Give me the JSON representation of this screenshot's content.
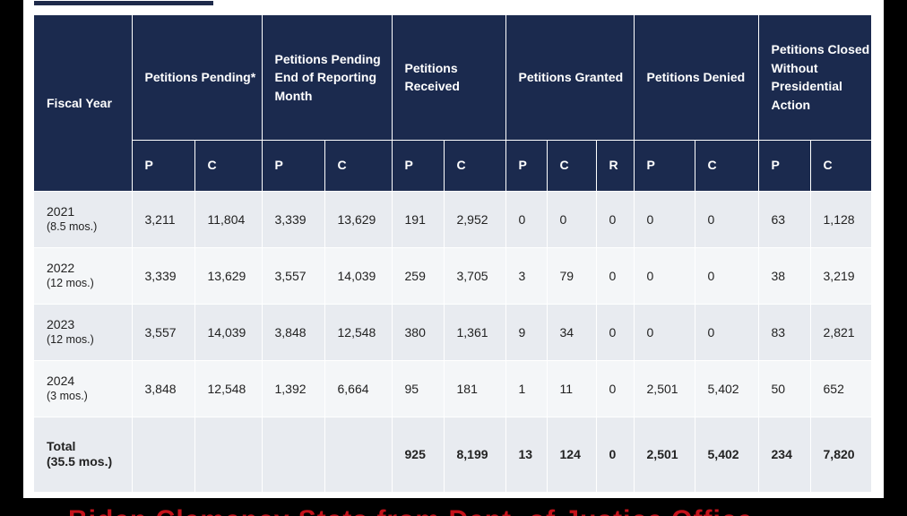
{
  "headers": {
    "fiscal_year": "Fiscal Year",
    "groups": [
      {
        "label": "Petitions Pending*",
        "subs": [
          "P",
          "C"
        ]
      },
      {
        "label": "Petitions Pending End of Reporting Month",
        "subs": [
          "P",
          "C"
        ]
      },
      {
        "label": "Petitions Received",
        "subs": [
          "P",
          "C"
        ]
      },
      {
        "label": "Petitions Granted",
        "subs": [
          "P",
          "C",
          "R"
        ]
      },
      {
        "label": "Petitions Denied",
        "subs": [
          "P",
          "C"
        ]
      },
      {
        "label": "Petitions Closed Without Presidential Action",
        "subs": [
          "P",
          "C"
        ]
      }
    ]
  },
  "rows": [
    {
      "year": "2021",
      "period": "(8.5 mos.)",
      "values": [
        "3,211",
        "11,804",
        "3,339",
        "13,629",
        "191",
        "2,952",
        "0",
        "0",
        "0",
        "0",
        "0",
        "63",
        "1,128"
      ]
    },
    {
      "year": "2022",
      "period": "(12 mos.)",
      "values": [
        "3,339",
        "13,629",
        "3,557",
        "14,039",
        "259",
        "3,705",
        "3",
        "79",
        "0",
        "0",
        "0",
        "38",
        "3,219"
      ]
    },
    {
      "year": "2023",
      "period": "(12 mos.)",
      "values": [
        "3,557",
        "14,039",
        "3,848",
        "12,548",
        "380",
        "1,361",
        "9",
        "34",
        "0",
        "0",
        "0",
        "83",
        "2,821"
      ]
    },
    {
      "year": "2024",
      "period": "(3 mos.)",
      "values": [
        "3,848",
        "12,548",
        "1,392",
        "6,664",
        "95",
        "181",
        "1",
        "11",
        "0",
        "2,501",
        "5,402",
        "50",
        "652"
      ]
    }
  ],
  "total": {
    "year": "Total",
    "period": "(35.5 mos.)",
    "values": [
      "",
      "",
      "",
      "",
      "925",
      "8,199",
      "13",
      "124",
      "0",
      "2,501",
      "5,402",
      "234",
      "7,820"
    ]
  },
  "caption": "Biden Clemency Stats from Dept. of Justice Office",
  "colors": {
    "header_bg": "#1b2a4e",
    "row_odd": "#e8ebf0",
    "row_even": "#f4f6f8",
    "caption": "#c4121a"
  }
}
